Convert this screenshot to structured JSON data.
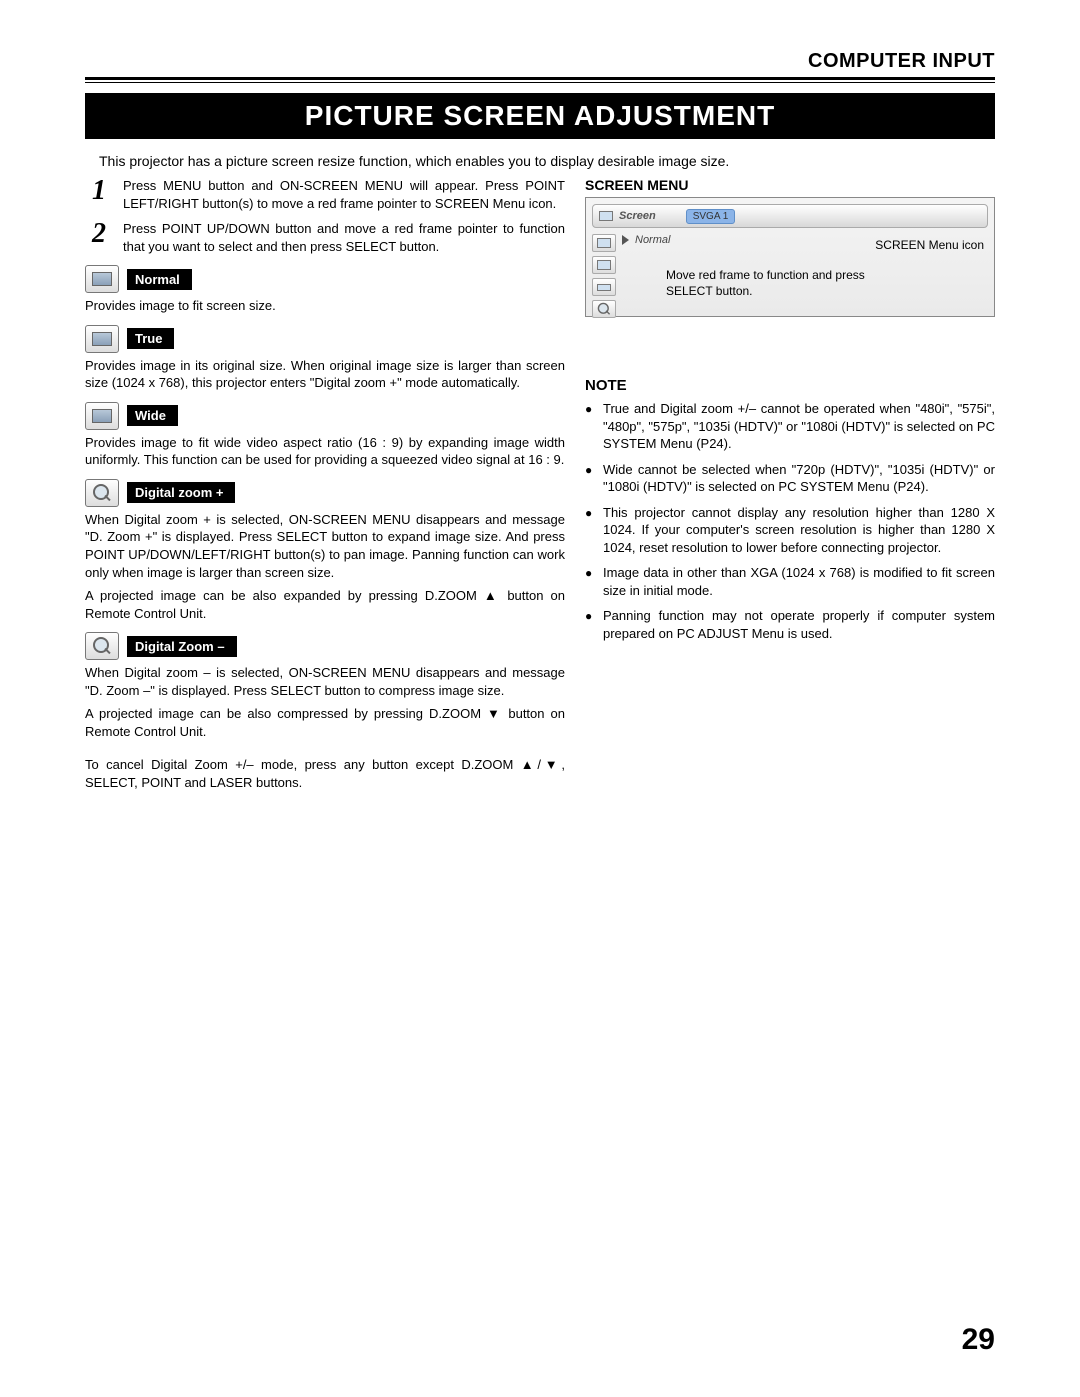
{
  "header": {
    "section": "COMPUTER INPUT"
  },
  "title": "PICTURE SCREEN ADJUSTMENT",
  "intro": "This projector has a picture screen resize function, which enables you to display desirable image size.",
  "steps": [
    {
      "num": "1",
      "text": "Press MENU button and ON-SCREEN MENU will appear.  Press POINT LEFT/RIGHT button(s) to move a red frame pointer to SCREEN Menu icon."
    },
    {
      "num": "2",
      "text": "Press POINT UP/DOWN button and move a red frame pointer to function that you want to select and then press SELECT button."
    }
  ],
  "modes": [
    {
      "label": "Normal",
      "icon": "screen",
      "desc": "Provides image to fit screen size."
    },
    {
      "label": "True",
      "icon": "screen",
      "desc": "Provides image in its original size.  When original image size is larger than screen size (1024 x 768), this projector enters \"Digital zoom +\" mode automatically."
    },
    {
      "label": "Wide",
      "icon": "screen",
      "desc": "Provides image to fit wide video aspect ratio (16 : 9) by expanding image width uniformly.  This function can be used for providing a squeezed video signal at 16 : 9."
    },
    {
      "label": "Digital zoom +",
      "icon": "zoom",
      "desc": "When Digital zoom + is selected, ON-SCREEN MENU disappears and message \"D. Zoom +\" is displayed.  Press SELECT button to expand image size.  And press POINT UP/DOWN/LEFT/RIGHT button(s) to pan image.  Panning function can work only when image is larger than screen size.",
      "desc2": "A projected image can be also expanded by pressing D.ZOOM ▲ button on Remote Control Unit."
    },
    {
      "label": "Digital Zoom –",
      "icon": "zoom",
      "desc": "When Digital zoom – is selected, ON-SCREEN MENU disappears and message \"D. Zoom –\" is displayed.  Press SELECT button to compress image size.",
      "desc2": "A projected image can be also compressed by pressing D.ZOOM ▼ button on Remote Control Unit."
    }
  ],
  "cancel_note": "To cancel Digital Zoom +/– mode, press any button except D.ZOOM ▲/▼, SELECT, POINT and LASER buttons.",
  "screen_menu": {
    "title": "SCREEN MENU",
    "topbar_label": "Screen",
    "topbar_chip": "SVGA 1",
    "normal_label": "Normal",
    "annot1": "SCREEN Menu icon",
    "annot2": "Move red frame to function and press SELECT button."
  },
  "note": {
    "title": "NOTE",
    "items": [
      "True and Digital zoom +/– cannot be operated when \"480i\", \"575i\", \"480p\", \"575p\", \"1035i (HDTV)\" or \"1080i (HDTV)\" is selected on PC SYSTEM Menu  (P24).",
      "Wide cannot be selected when \"720p (HDTV)\", \"1035i (HDTV)\" or \"1080i (HDTV)\" is selected on PC SYSTEM Menu (P24).",
      "This projector cannot display any resolution higher than 1280 X 1024.  If your computer's screen resolution is higher than 1280 X 1024, reset resolution to lower before connecting projector.",
      "Image data in other than XGA (1024 x 768) is modified to fit screen size in initial mode.",
      "Panning function may not operate properly if computer system prepared on PC ADJUST Menu is used."
    ]
  },
  "page_number": "29"
}
